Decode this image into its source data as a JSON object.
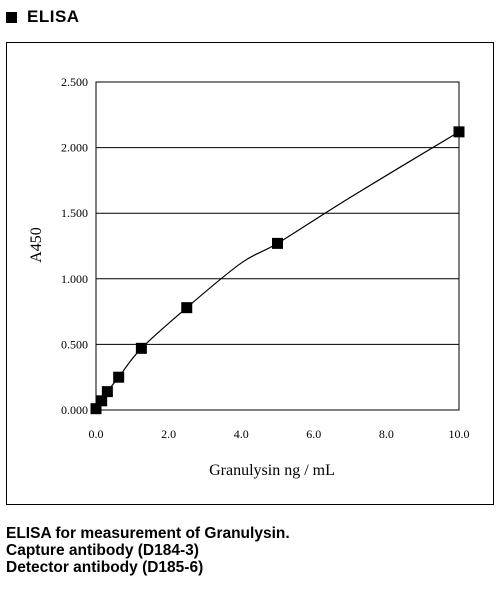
{
  "heading": "ELISA",
  "caption": [
    "ELISA for measurement of Granulysin.",
    "Capture antibody (D184-3)",
    "Detector antibody (D185-6)"
  ],
  "chart_data": {
    "type": "line",
    "title": "",
    "xlabel": "Granulysin ng / mL",
    "ylabel": "A450",
    "xlim": [
      0,
      10
    ],
    "ylim": [
      0,
      2.5
    ],
    "x_ticks": [
      "0.0",
      "2.0",
      "4.0",
      "6.0",
      "8.0",
      "10.0"
    ],
    "y_ticks": [
      "0.000",
      "0.500",
      "1.000",
      "1.500",
      "2.000",
      "2.500"
    ],
    "grid": "horizontal",
    "marker": "square",
    "series": [
      {
        "x": [
          0,
          0.156,
          0.313,
          0.625,
          1.25,
          2.5,
          5.0,
          10.0
        ],
        "y": [
          0.01,
          0.07,
          0.14,
          0.25,
          0.47,
          0.78,
          1.27,
          2.12
        ]
      }
    ],
    "curve": {
      "x": [
        0,
        0.156,
        0.313,
        0.625,
        1.25,
        2.5,
        4.0,
        5.0,
        7.0,
        10.0
      ],
      "y": [
        0.01,
        0.07,
        0.14,
        0.25,
        0.47,
        0.78,
        1.12,
        1.27,
        1.62,
        2.12
      ]
    }
  }
}
